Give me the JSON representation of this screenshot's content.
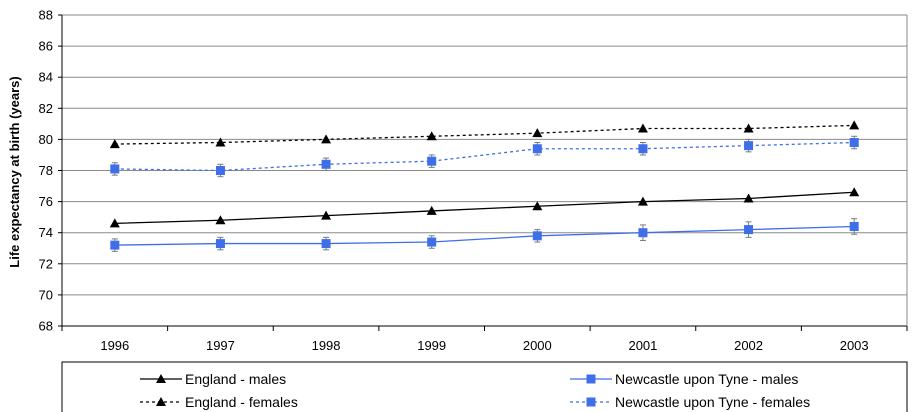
{
  "chart_data": {
    "type": "line",
    "title": "",
    "xlabel": "",
    "ylabel": "Life expectancy at birth (years)",
    "ylim": [
      68,
      88
    ],
    "ytick_step": 2,
    "categories": [
      "1996",
      "1997",
      "1998",
      "1999",
      "2000",
      "2001",
      "2002",
      "2003"
    ],
    "grid": "horizontal",
    "legend_position": "bottom",
    "series": [
      {
        "name": "England - males",
        "values": [
          74.6,
          74.8,
          75.1,
          75.4,
          75.7,
          76.0,
          76.2,
          76.6
        ],
        "color": "#000000",
        "line_style": "solid",
        "marker": "triangle"
      },
      {
        "name": "Newcastle upon Tyne - males",
        "values": [
          73.2,
          73.3,
          73.3,
          73.4,
          73.8,
          74.0,
          74.2,
          74.4
        ],
        "error": [
          0.4,
          0.4,
          0.4,
          0.4,
          0.4,
          0.5,
          0.5,
          0.5
        ],
        "color": "#3F6FE8",
        "line_style": "solid",
        "marker": "square"
      },
      {
        "name": "England - females",
        "values": [
          79.7,
          79.8,
          80.0,
          80.2,
          80.4,
          80.7,
          80.7,
          80.9
        ],
        "color": "#000000",
        "line_style": "dotted",
        "marker": "triangle"
      },
      {
        "name": "Newcastle upon Tyne - females",
        "values": [
          78.1,
          78.0,
          78.4,
          78.6,
          79.4,
          79.4,
          79.6,
          79.8
        ],
        "error": [
          0.4,
          0.4,
          0.4,
          0.4,
          0.4,
          0.4,
          0.4,
          0.4
        ],
        "color": "#3F6FE8",
        "line_style": "dotted",
        "marker": "square"
      }
    ],
    "legend_order": [
      0,
      1,
      2,
      3
    ]
  }
}
